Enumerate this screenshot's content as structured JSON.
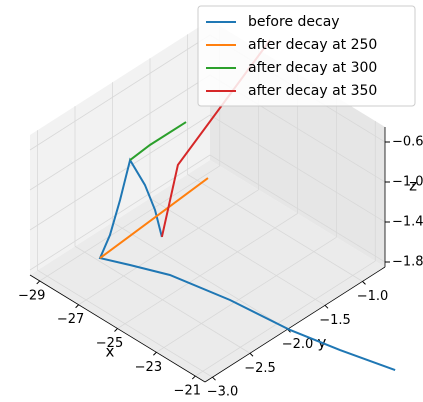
{
  "chart_data": {
    "type": "line3d",
    "xlabel": "x",
    "ylabel": "y",
    "zlabel": "z",
    "xlim": [
      -29.5,
      -20.5
    ],
    "ylim": [
      -3.1,
      -0.7
    ],
    "zlim": [
      -1.85,
      -0.45
    ],
    "xticks": [
      {
        "value": -29,
        "label": "−29"
      },
      {
        "value": -27,
        "label": "−27"
      },
      {
        "value": -25,
        "label": "−25"
      },
      {
        "value": -23,
        "label": "−23"
      },
      {
        "value": -21,
        "label": "−21"
      }
    ],
    "yticks": [
      {
        "value": -3.0,
        "label": "−3.0"
      },
      {
        "value": -2.5,
        "label": "−2.5"
      },
      {
        "value": -2.0,
        "label": "−2.0"
      },
      {
        "value": -1.5,
        "label": "−1.5"
      },
      {
        "value": -1.0,
        "label": "−1.0"
      }
    ],
    "zticks": [
      {
        "value": -1.8,
        "label": "−1.8"
      },
      {
        "value": -1.4,
        "label": "−1.4"
      },
      {
        "value": -1.0,
        "label": "−1.0"
      },
      {
        "value": -0.6,
        "label": "−0.6"
      }
    ],
    "grid": true,
    "legend": "upper right",
    "series": [
      {
        "name": "before decay",
        "color": "#1f77b4",
        "x": [
          -15.79,
          -18.06,
          -20.2,
          -23.01,
          -25.62,
          -27.08,
          -28.15,
          -27.81,
          -27.75,
          -27.69,
          -27.1,
          -26.83,
          -26.57
        ],
        "y": [
          -1.786,
          -1.932,
          -2.044,
          -2.116,
          -2.241,
          -2.395,
          -2.516,
          -2.472,
          -2.353,
          -2.235,
          -2.19,
          -2.125,
          -2.101
        ],
        "z": [
          -1.8,
          -1.8,
          -1.8,
          -1.8,
          -1.8,
          -1.8,
          -1.8,
          -1.55,
          -1.25,
          -0.9,
          -1.1,
          -1.35,
          -1.6
        ]
      },
      {
        "name": "after decay at 250",
        "color": "#ff7f0e",
        "x": [
          -28.15,
          -26.55
        ],
        "y": [
          -2.516,
          -1.492
        ],
        "z": [
          -1.8,
          -1.3
        ]
      },
      {
        "name": "after decay at 300",
        "color": "#2ca02c",
        "x": [
          -27.69,
          -27.46,
          -26.96
        ],
        "y": [
          -2.235,
          -2.03,
          -1.678
        ],
        "z": [
          -0.9,
          -0.82,
          -0.7
        ]
      },
      {
        "name": "after decay at 350",
        "color": "#d62728",
        "x": [
          -26.57,
          -26.85,
          -27.3
        ],
        "y": [
          -2.101,
          -1.815,
          -0.47
        ],
        "z": [
          -1.6,
          -1.05,
          -0.5
        ]
      }
    ]
  }
}
